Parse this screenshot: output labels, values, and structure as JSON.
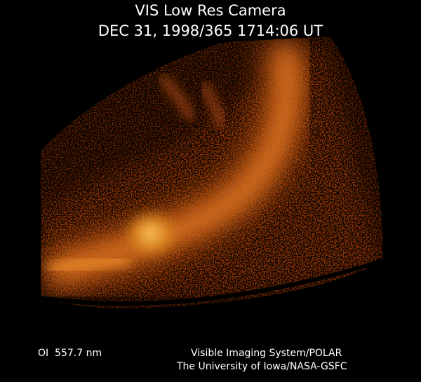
{
  "header": {
    "title": "VIS Low Res Camera",
    "timestamp": "DEC 31, 1998/365 1714:06 UT"
  },
  "footer": {
    "filter": "OI  557.7 nm",
    "credit_lines": [
      "Visible Imaging System/POLAR",
      "The University of Iowa/NASA-GSFC"
    ]
  }
}
